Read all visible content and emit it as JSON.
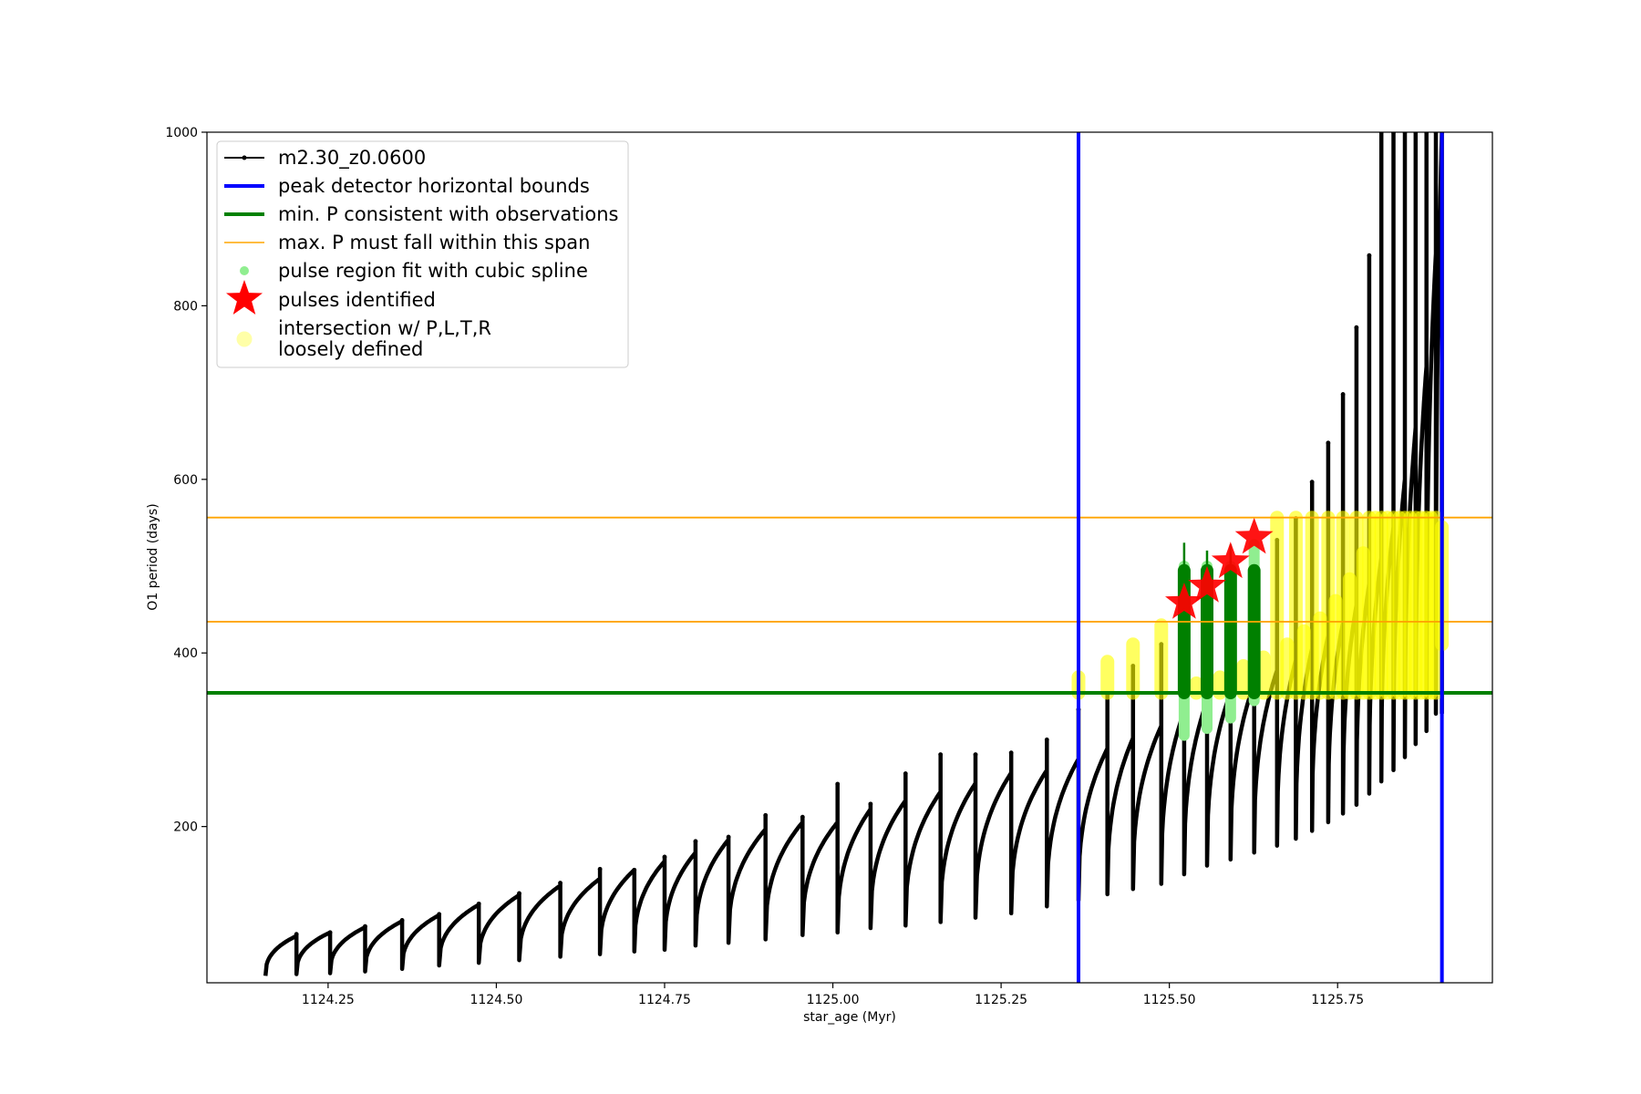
{
  "chart_data": {
    "type": "line",
    "title": "",
    "xlabel": "star_age (Myr)",
    "ylabel": "O1 period (days)",
    "xlim": [
      1124.07,
      1125.98
    ],
    "ylim": [
      20,
      1000
    ],
    "xticks": [
      1124.25,
      1124.5,
      1124.75,
      1125.0,
      1125.25,
      1125.5,
      1125.75
    ],
    "xtick_labels": [
      "1124.25",
      "1124.50",
      "1124.75",
      "1125.00",
      "1125.25",
      "1125.50",
      "1125.75"
    ],
    "yticks": [
      200,
      400,
      600,
      800,
      1000
    ],
    "ytick_labels": [
      "200",
      "400",
      "600",
      "800",
      "1000"
    ],
    "grid": false,
    "legend_position": "top-left",
    "legend": [
      {
        "label": "m2.30_z0.0600",
        "marker": "line-dot",
        "color": "#000000"
      },
      {
        "label": "peak detector horizontal bounds",
        "marker": "line",
        "color": "#0000ff"
      },
      {
        "label": "min. P consistent with observations",
        "marker": "line",
        "color": "#008000"
      },
      {
        "label": "max. P must fall within this span",
        "marker": "line",
        "color": "#ffa500"
      },
      {
        "label": "pulse region fit with cubic spline",
        "marker": "dot",
        "color": "#90ee90"
      },
      {
        "label": "pulses identified",
        "marker": "star",
        "color": "#ff0000"
      },
      {
        "label": "intersection w/ P,L,T,R",
        "label_line2": "loosely defined",
        "marker": "circle",
        "color": "#ffff99"
      }
    ],
    "vertical_lines": {
      "name": "peak detector horizontal bounds",
      "x": [
        1125.365,
        1125.905
      ],
      "color": "#0000ff"
    },
    "min_period_line": {
      "name": "min. P consistent with observations",
      "y": 354,
      "color": "#008000"
    },
    "max_period_span": {
      "name": "max. P must fall within this span",
      "y": [
        436,
        556
      ],
      "color": "#ffa500"
    },
    "series": [
      {
        "name": "m2.30_z0.0600",
        "color": "#000000",
        "pulses": [
          {
            "x0": 1124.157,
            "x1": 1124.203,
            "ymin": 28,
            "ypeak": 74,
            "spike": 76
          },
          {
            "x0": 1124.203,
            "x1": 1124.253,
            "ymin": 30,
            "ypeak": 78,
            "spike": 78
          },
          {
            "x0": 1124.253,
            "x1": 1124.305,
            "ymin": 31,
            "ypeak": 84,
            "spike": 85
          },
          {
            "x0": 1124.305,
            "x1": 1124.36,
            "ymin": 33,
            "ypeak": 91,
            "spike": 92
          },
          {
            "x0": 1124.36,
            "x1": 1124.415,
            "ymin": 36,
            "ypeak": 98,
            "spike": 99
          },
          {
            "x0": 1124.415,
            "x1": 1124.474,
            "ymin": 40,
            "ypeak": 110,
            "spike": 111
          },
          {
            "x0": 1124.474,
            "x1": 1124.534,
            "ymin": 43,
            "ypeak": 121,
            "spike": 123
          },
          {
            "x0": 1124.534,
            "x1": 1124.595,
            "ymin": 46,
            "ypeak": 132,
            "spike": 135
          },
          {
            "x0": 1124.595,
            "x1": 1124.654,
            "ymin": 50,
            "ypeak": 140,
            "spike": 151
          },
          {
            "x0": 1124.654,
            "x1": 1124.705,
            "ymin": 53,
            "ypeak": 150,
            "spike": 149
          },
          {
            "x0": 1124.705,
            "x1": 1124.75,
            "ymin": 56,
            "ypeak": 160,
            "spike": 165
          },
          {
            "x0": 1124.75,
            "x1": 1124.796,
            "ymin": 58,
            "ypeak": 170,
            "spike": 183
          },
          {
            "x0": 1124.796,
            "x1": 1124.845,
            "ymin": 63,
            "ypeak": 185,
            "spike": 188
          },
          {
            "x0": 1124.845,
            "x1": 1124.9,
            "ymin": 66,
            "ypeak": 197,
            "spike": 213
          },
          {
            "x0": 1124.9,
            "x1": 1124.955,
            "ymin": 70,
            "ypeak": 205,
            "spike": 211
          },
          {
            "x0": 1124.955,
            "x1": 1125.007,
            "ymin": 75,
            "ypeak": 205,
            "spike": 249
          },
          {
            "x0": 1125.007,
            "x1": 1125.056,
            "ymin": 78,
            "ypeak": 220,
            "spike": 226
          },
          {
            "x0": 1125.056,
            "x1": 1125.108,
            "ymin": 83,
            "ypeak": 230,
            "spike": 261
          },
          {
            "x0": 1125.108,
            "x1": 1125.16,
            "ymin": 86,
            "ypeak": 240,
            "spike": 283
          },
          {
            "x0": 1125.16,
            "x1": 1125.212,
            "ymin": 90,
            "ypeak": 250,
            "spike": 283
          },
          {
            "x0": 1125.212,
            "x1": 1125.265,
            "ymin": 95,
            "ypeak": 262,
            "spike": 285
          },
          {
            "x0": 1125.265,
            "x1": 1125.318,
            "ymin": 100,
            "ypeak": 265,
            "spike": 300
          },
          {
            "x0": 1125.318,
            "x1": 1125.365,
            "ymin": 108,
            "ypeak": 278,
            "spike": 335
          },
          {
            "x0": 1125.365,
            "x1": 1125.408,
            "ymin": 115,
            "ypeak": 290,
            "spike": 352
          },
          {
            "x0": 1125.408,
            "x1": 1125.446,
            "ymin": 122,
            "ypeak": 302,
            "spike": 385
          },
          {
            "x0": 1125.446,
            "x1": 1125.488,
            "ymin": 128,
            "ypeak": 316,
            "spike": 410
          },
          {
            "x0": 1125.488,
            "x1": 1125.522,
            "ymin": 134,
            "ypeak": 333,
            "spike": 438
          },
          {
            "x0": 1125.522,
            "x1": 1125.556,
            "ymin": 145,
            "ypeak": 345,
            "spike": 490
          },
          {
            "x0": 1125.556,
            "x1": 1125.591,
            "ymin": 155,
            "ypeak": 355,
            "spike": 495
          },
          {
            "x0": 1125.591,
            "x1": 1125.626,
            "ymin": 162,
            "ypeak": 365,
            "spike": 495
          },
          {
            "x0": 1125.626,
            "x1": 1125.66,
            "ymin": 170,
            "ypeak": 380,
            "spike": 530
          },
          {
            "x0": 1125.66,
            "x1": 1125.688,
            "ymin": 178,
            "ypeak": 392,
            "spike": 555
          },
          {
            "x0": 1125.688,
            "x1": 1125.712,
            "ymin": 186,
            "ypeak": 405,
            "spike": 597
          },
          {
            "x0": 1125.712,
            "x1": 1125.736,
            "ymin": 195,
            "ypeak": 420,
            "spike": 642
          },
          {
            "x0": 1125.736,
            "x1": 1125.758,
            "ymin": 205,
            "ypeak": 435,
            "spike": 698
          },
          {
            "x0": 1125.758,
            "x1": 1125.778,
            "ymin": 215,
            "ypeak": 455,
            "spike": 775
          },
          {
            "x0": 1125.778,
            "x1": 1125.797,
            "ymin": 225,
            "ypeak": 480,
            "spike": 858
          },
          {
            "x0": 1125.797,
            "x1": 1125.815,
            "ymin": 238,
            "ypeak": 510,
            "spike": 1000
          },
          {
            "x0": 1125.815,
            "x1": 1125.833,
            "ymin": 252,
            "ypeak": 545,
            "spike": 1000
          },
          {
            "x0": 1125.833,
            "x1": 1125.85,
            "ymin": 265,
            "ypeak": 600,
            "spike": 1000
          },
          {
            "x0": 1125.85,
            "x1": 1125.866,
            "ymin": 280,
            "ypeak": 660,
            "spike": 1000
          },
          {
            "x0": 1125.866,
            "x1": 1125.882,
            "ymin": 295,
            "ypeak": 730,
            "spike": 1000
          },
          {
            "x0": 1125.882,
            "x1": 1125.896,
            "ymin": 310,
            "ypeak": 860,
            "spike": 1000
          },
          {
            "x0": 1125.896,
            "x1": 1125.905,
            "ymin": 330,
            "ypeak": 1000,
            "spike": 1000
          }
        ]
      },
      {
        "name": "pulse region fit with cubic spline",
        "color": "#90ee90",
        "segments": [
          {
            "x": 1125.522,
            "y0": 305,
            "y1": 500
          },
          {
            "x": 1125.556,
            "y0": 313,
            "y1": 500
          },
          {
            "x": 1125.591,
            "y0": 325,
            "y1": 500
          },
          {
            "x": 1125.626,
            "y0": 345,
            "y1": 525
          }
        ]
      },
      {
        "name": "min. P consistent with observations (pulse overlap)",
        "color": "#008000",
        "segments": [
          {
            "x": 1125.522,
            "y0": 354,
            "y1": 495,
            "top": 527
          },
          {
            "x": 1125.556,
            "y0": 354,
            "y1": 495,
            "top": 518
          },
          {
            "x": 1125.591,
            "y0": 354,
            "y1": 495,
            "top": 525
          },
          {
            "x": 1125.626,
            "y0": 354,
            "y1": 495,
            "top": 495
          }
        ]
      },
      {
        "name": "pulses identified",
        "color": "#ff0000",
        "points": [
          {
            "x": 1125.522,
            "y": 458
          },
          {
            "x": 1125.556,
            "y": 477
          },
          {
            "x": 1125.591,
            "y": 505
          },
          {
            "x": 1125.626,
            "y": 533
          }
        ]
      },
      {
        "name": "intersection w/ P,L,T,R loosely defined",
        "color": "#ffff00",
        "bands": [
          {
            "x": 1125.365,
            "y0": 354,
            "y1": 372
          },
          {
            "x": 1125.408,
            "y0": 354,
            "y1": 390
          },
          {
            "x": 1125.446,
            "y0": 354,
            "y1": 410
          },
          {
            "x": 1125.488,
            "y0": 354,
            "y1": 432
          },
          {
            "x": 1125.54,
            "y0": 354,
            "y1": 365
          },
          {
            "x": 1125.575,
            "y0": 354,
            "y1": 372
          },
          {
            "x": 1125.61,
            "y0": 354,
            "y1": 385
          },
          {
            "x": 1125.64,
            "y0": 354,
            "y1": 395
          },
          {
            "x": 1125.66,
            "y0": 354,
            "y1": 556
          },
          {
            "x": 1125.675,
            "y0": 354,
            "y1": 410
          },
          {
            "x": 1125.688,
            "y0": 354,
            "y1": 556
          },
          {
            "x": 1125.7,
            "y0": 354,
            "y1": 425
          },
          {
            "x": 1125.712,
            "y0": 354,
            "y1": 556
          },
          {
            "x": 1125.724,
            "y0": 354,
            "y1": 440
          },
          {
            "x": 1125.736,
            "y0": 354,
            "y1": 556
          },
          {
            "x": 1125.747,
            "y0": 354,
            "y1": 460
          },
          {
            "x": 1125.758,
            "y0": 354,
            "y1": 556
          },
          {
            "x": 1125.768,
            "y0": 354,
            "y1": 485
          },
          {
            "x": 1125.778,
            "y0": 354,
            "y1": 556
          },
          {
            "x": 1125.788,
            "y0": 354,
            "y1": 515
          },
          {
            "x": 1125.797,
            "y0": 354,
            "y1": 556
          },
          {
            "x": 1125.806,
            "y0": 354,
            "y1": 556
          },
          {
            "x": 1125.815,
            "y0": 354,
            "y1": 556
          },
          {
            "x": 1125.824,
            "y0": 354,
            "y1": 556
          },
          {
            "x": 1125.833,
            "y0": 354,
            "y1": 556
          },
          {
            "x": 1125.842,
            "y0": 354,
            "y1": 556
          },
          {
            "x": 1125.85,
            "y0": 354,
            "y1": 556
          },
          {
            "x": 1125.858,
            "y0": 354,
            "y1": 556
          },
          {
            "x": 1125.866,
            "y0": 354,
            "y1": 556
          },
          {
            "x": 1125.874,
            "y0": 354,
            "y1": 556
          },
          {
            "x": 1125.882,
            "y0": 354,
            "y1": 556
          },
          {
            "x": 1125.889,
            "y0": 354,
            "y1": 556
          },
          {
            "x": 1125.896,
            "y0": 354,
            "y1": 556
          },
          {
            "x": 1125.905,
            "y0": 410,
            "y1": 545
          }
        ]
      }
    ]
  }
}
